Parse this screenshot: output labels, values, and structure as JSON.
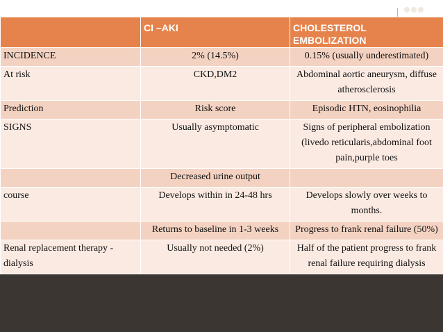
{
  "header": {
    "col1": "",
    "col2": "CI –AKI",
    "col3_line1": "CHOLESTEROL",
    "col3_line2": "EMBOLIZATION"
  },
  "rows": [
    {
      "c1": "INCIDENCE",
      "c2": "2% (14.5%)",
      "c3": "0.15% (usually underestimated)"
    },
    {
      "c1": "At risk",
      "c2": "CKD,DM2",
      "c3": "Abdominal aortic aneurysm, diffuse atherosclerosis"
    },
    {
      "c1": "Prediction",
      "c2": "Risk score",
      "c3": "Episodic HTN, eosinophilia"
    },
    {
      "c1": "SIGNS",
      "c2": "Usually asymptomatic",
      "c3": "Signs of peripheral embolization (livedo reticularis,abdominal foot pain,purple toes"
    },
    {
      "c1": "",
      "c2": "Decreased urine output",
      "c3": ""
    },
    {
      "c1": "course",
      "c2": "Develops within in 24-48 hrs",
      "c3": "Develops slowly over weeks to months."
    },
    {
      "c1": "",
      "c2": "Returns to baseline in 1-3 weeks",
      "c3": "Progress to frank renal failure (50%)"
    },
    {
      "c1": "Renal replacement therapy -dialysis",
      "c2": "Usually not needed (2%)",
      "c3": "Half of the patient progress to frank renal failure requiring dialysis"
    }
  ],
  "icons": {
    "logo": "dots-logo-icon"
  },
  "colors": {
    "header_bg": "#e6834c",
    "row_dark": "#f4d2c2",
    "row_light": "#fbeae2",
    "slide_bg": "#3b3632"
  }
}
